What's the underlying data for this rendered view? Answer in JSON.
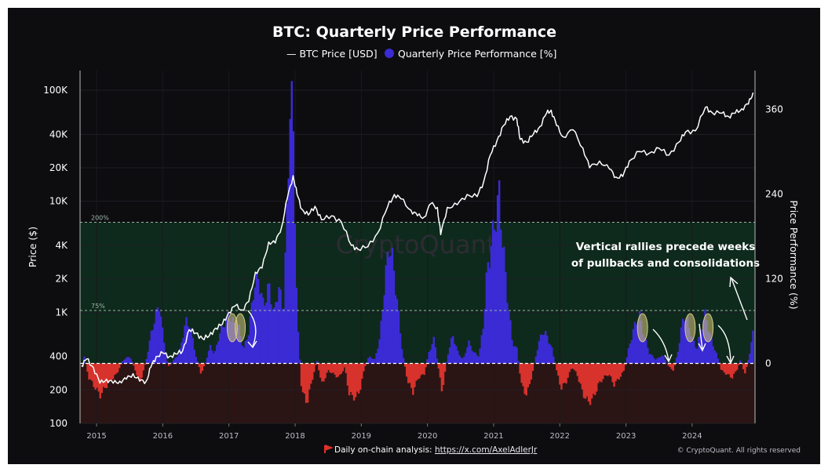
{
  "chart_data": {
    "type": "bar",
    "title": "BTC: Quarterly Price Performance",
    "legend": {
      "placement": "top-center",
      "entries": [
        {
          "label": "— BTC Price [USD]",
          "color": "#ffffff",
          "marker": "line"
        },
        {
          "label": "Quarterly Price Performance [%]",
          "color": "#3b2bd4",
          "marker": "dot"
        }
      ]
    },
    "y_left": {
      "label": "Price ($)",
      "scale": "log",
      "range": [
        100,
        150000
      ],
      "ticks": [
        {
          "value": 100,
          "label": "100"
        },
        {
          "value": 200,
          "label": "200"
        },
        {
          "value": 400,
          "label": "400"
        },
        {
          "value": 1000,
          "label": "1K"
        },
        {
          "value": 2000,
          "label": "2K"
        },
        {
          "value": 4000,
          "label": "4K"
        },
        {
          "value": 10000,
          "label": "10K"
        },
        {
          "value": 20000,
          "label": "20K"
        },
        {
          "value": 40000,
          "label": "40K"
        },
        {
          "value": 100000,
          "label": "100K"
        }
      ]
    },
    "y_right": {
      "label": "Price Performance (%)",
      "range": [
        -85,
        415
      ],
      "ticks": [
        {
          "value": 0,
          "label": "0"
        },
        {
          "value": 120,
          "label": "120"
        },
        {
          "value": 240,
          "label": "240"
        },
        {
          "value": 360,
          "label": "360"
        }
      ]
    },
    "x_axis": {
      "range": [
        2014.75,
        2024.95
      ],
      "ticks": [
        {
          "value": 2015,
          "label": "2015"
        },
        {
          "value": 2016,
          "label": "2016"
        },
        {
          "value": 2017,
          "label": "2017"
        },
        {
          "value": 2018,
          "label": "2018"
        },
        {
          "value": 2019,
          "label": "2019"
        },
        {
          "value": 2020,
          "label": "2020"
        },
        {
          "value": 2021,
          "label": "2021"
        },
        {
          "value": 2022,
          "label": "2022"
        },
        {
          "value": 2023,
          "label": "2023"
        },
        {
          "value": 2024,
          "label": "2024"
        }
      ]
    },
    "bands": [
      {
        "label": "200%",
        "value": 200,
        "style": "dashed"
      },
      {
        "label": "75%",
        "value": 75,
        "style": "dashed"
      }
    ],
    "zones": {
      "positive_color": "#0e2a1c",
      "negative_color": "#2b1414"
    },
    "bar_colors": {
      "positive": "#3b2bd4",
      "negative": "#d8322c"
    },
    "grid": true,
    "series": [
      {
        "name": "BTC Price [USD]",
        "axis": "left",
        "color": "#ffffff",
        "points": [
          [
            2014.77,
            330
          ],
          [
            2014.85,
            380
          ],
          [
            2014.95,
            320
          ],
          [
            2015.05,
            230
          ],
          [
            2015.15,
            250
          ],
          [
            2015.25,
            230
          ],
          [
            2015.35,
            240
          ],
          [
            2015.45,
            250
          ],
          [
            2015.55,
            280
          ],
          [
            2015.65,
            240
          ],
          [
            2015.75,
            240
          ],
          [
            2015.82,
            320
          ],
          [
            2015.9,
            400
          ],
          [
            2016.0,
            430
          ],
          [
            2016.1,
            400
          ],
          [
            2016.2,
            420
          ],
          [
            2016.3,
            450
          ],
          [
            2016.4,
            700
          ],
          [
            2016.5,
            650
          ],
          [
            2016.6,
            580
          ],
          [
            2016.7,
            610
          ],
          [
            2016.8,
            720
          ],
          [
            2016.9,
            780
          ],
          [
            2017.0,
            1000
          ],
          [
            2017.1,
            1150
          ],
          [
            2017.2,
            1050
          ],
          [
            2017.3,
            1250
          ],
          [
            2017.4,
            2300
          ],
          [
            2017.5,
            2500
          ],
          [
            2017.6,
            4300
          ],
          [
            2017.7,
            4200
          ],
          [
            2017.8,
            6000
          ],
          [
            2017.88,
            10500
          ],
          [
            2017.97,
            17000
          ],
          [
            2018.03,
            11500
          ],
          [
            2018.1,
            8500
          ],
          [
            2018.2,
            7500
          ],
          [
            2018.3,
            9000
          ],
          [
            2018.4,
            6800
          ],
          [
            2018.55,
            7400
          ],
          [
            2018.7,
            6500
          ],
          [
            2018.85,
            4000
          ],
          [
            2018.95,
            3700
          ],
          [
            2019.1,
            3900
          ],
          [
            2019.25,
            5200
          ],
          [
            2019.4,
            9000
          ],
          [
            2019.5,
            11500
          ],
          [
            2019.6,
            10500
          ],
          [
            2019.75,
            8300
          ],
          [
            2019.85,
            7400
          ],
          [
            2019.95,
            7200
          ],
          [
            2020.05,
            9500
          ],
          [
            2020.15,
            8800
          ],
          [
            2020.2,
            5000
          ],
          [
            2020.3,
            8800
          ],
          [
            2020.45,
            9300
          ],
          [
            2020.6,
            11500
          ],
          [
            2020.75,
            11000
          ],
          [
            2020.85,
            15000
          ],
          [
            2020.95,
            26000
          ],
          [
            2021.05,
            35000
          ],
          [
            2021.15,
            48000
          ],
          [
            2021.25,
            58000
          ],
          [
            2021.35,
            55000
          ],
          [
            2021.4,
            36000
          ],
          [
            2021.5,
            34000
          ],
          [
            2021.6,
            40000
          ],
          [
            2021.7,
            47000
          ],
          [
            2021.8,
            62000
          ],
          [
            2021.87,
            66000
          ],
          [
            2021.95,
            48000
          ],
          [
            2022.05,
            38000
          ],
          [
            2022.2,
            44000
          ],
          [
            2022.35,
            30000
          ],
          [
            2022.45,
            20000
          ],
          [
            2022.6,
            23000
          ],
          [
            2022.75,
            19500
          ],
          [
            2022.85,
            16500
          ],
          [
            2022.95,
            16700
          ],
          [
            2023.05,
            23000
          ],
          [
            2023.2,
            28000
          ],
          [
            2023.35,
            27000
          ],
          [
            2023.5,
            30000
          ],
          [
            2023.65,
            26000
          ],
          [
            2023.8,
            34000
          ],
          [
            2023.9,
            42000
          ],
          [
            2024.05,
            43000
          ],
          [
            2024.2,
            70000
          ],
          [
            2024.3,
            63000
          ],
          [
            2024.45,
            62000
          ],
          [
            2024.55,
            58000
          ],
          [
            2024.65,
            62000
          ],
          [
            2024.75,
            68000
          ],
          [
            2024.85,
            75000
          ],
          [
            2024.92,
            95000
          ]
        ]
      },
      {
        "name": "Quarterly Price Performance [%]",
        "axis": "right",
        "color": "#3b2bd4",
        "points": [
          [
            2014.8,
            15
          ],
          [
            2014.88,
            -20
          ],
          [
            2014.95,
            -30
          ],
          [
            2015.05,
            -45
          ],
          [
            2015.12,
            -35
          ],
          [
            2015.2,
            -25
          ],
          [
            2015.3,
            -15
          ],
          [
            2015.4,
            5
          ],
          [
            2015.5,
            10
          ],
          [
            2015.58,
            -8
          ],
          [
            2015.65,
            -28
          ],
          [
            2015.75,
            5
          ],
          [
            2015.83,
            45
          ],
          [
            2015.9,
            70
          ],
          [
            2015.95,
            85
          ],
          [
            2016.0,
            40
          ],
          [
            2016.08,
            -5
          ],
          [
            2016.15,
            3
          ],
          [
            2016.25,
            15
          ],
          [
            2016.35,
            60
          ],
          [
            2016.42,
            50
          ],
          [
            2016.5,
            10
          ],
          [
            2016.58,
            -15
          ],
          [
            2016.65,
            3
          ],
          [
            2016.72,
            25
          ],
          [
            2016.78,
            12
          ],
          [
            2016.85,
            40
          ],
          [
            2016.92,
            55
          ],
          [
            2017.0,
            70
          ],
          [
            2017.08,
            55
          ],
          [
            2017.15,
            50
          ],
          [
            2017.22,
            20
          ],
          [
            2017.3,
            45
          ],
          [
            2017.38,
            110
          ],
          [
            2017.45,
            120
          ],
          [
            2017.52,
            80
          ],
          [
            2017.6,
            110
          ],
          [
            2017.68,
            70
          ],
          [
            2017.75,
            110
          ],
          [
            2017.82,
            70
          ],
          [
            2017.88,
            220
          ],
          [
            2017.93,
            395
          ],
          [
            2017.98,
            300
          ],
          [
            2018.03,
            60
          ],
          [
            2018.1,
            -40
          ],
          [
            2018.18,
            -55
          ],
          [
            2018.25,
            -25
          ],
          [
            2018.33,
            5
          ],
          [
            2018.4,
            -30
          ],
          [
            2018.5,
            -10
          ],
          [
            2018.58,
            -15
          ],
          [
            2018.66,
            -20
          ],
          [
            2018.75,
            -5
          ],
          [
            2018.82,
            -45
          ],
          [
            2018.92,
            -48
          ],
          [
            2018.97,
            -40
          ],
          [
            2019.05,
            -5
          ],
          [
            2019.12,
            10
          ],
          [
            2019.2,
            5
          ],
          [
            2019.28,
            35
          ],
          [
            2019.35,
            110
          ],
          [
            2019.42,
            170
          ],
          [
            2019.48,
            140
          ],
          [
            2019.55,
            80
          ],
          [
            2019.62,
            15
          ],
          [
            2019.7,
            -25
          ],
          [
            2019.78,
            -40
          ],
          [
            2019.86,
            -20
          ],
          [
            2019.95,
            -15
          ],
          [
            2020.02,
            15
          ],
          [
            2020.1,
            35
          ],
          [
            2020.17,
            -10
          ],
          [
            2020.22,
            -40
          ],
          [
            2020.3,
            10
          ],
          [
            2020.38,
            40
          ],
          [
            2020.46,
            15
          ],
          [
            2020.54,
            5
          ],
          [
            2020.62,
            30
          ],
          [
            2020.7,
            15
          ],
          [
            2020.78,
            10
          ],
          [
            2020.85,
            60
          ],
          [
            2020.9,
            130
          ],
          [
            2020.95,
            160
          ],
          [
            2021.02,
            200
          ],
          [
            2021.08,
            240
          ],
          [
            2021.12,
            190
          ],
          [
            2021.2,
            100
          ],
          [
            2021.28,
            30
          ],
          [
            2021.35,
            20
          ],
          [
            2021.42,
            -30
          ],
          [
            2021.5,
            -45
          ],
          [
            2021.58,
            -15
          ],
          [
            2021.66,
            20
          ],
          [
            2021.73,
            45
          ],
          [
            2021.8,
            40
          ],
          [
            2021.88,
            20
          ],
          [
            2021.95,
            -10
          ],
          [
            2022.02,
            -35
          ],
          [
            2022.1,
            -25
          ],
          [
            2022.18,
            -5
          ],
          [
            2022.26,
            -15
          ],
          [
            2022.34,
            -40
          ],
          [
            2022.42,
            -55
          ],
          [
            2022.5,
            -50
          ],
          [
            2022.58,
            -30
          ],
          [
            2022.66,
            -20
          ],
          [
            2022.74,
            -15
          ],
          [
            2022.82,
            -30
          ],
          [
            2022.9,
            -20
          ],
          [
            2022.97,
            -10
          ],
          [
            2023.05,
            25
          ],
          [
            2023.12,
            50
          ],
          [
            2023.2,
            70
          ],
          [
            2023.27,
            40
          ],
          [
            2023.35,
            15
          ],
          [
            2023.45,
            5
          ],
          [
            2023.55,
            12
          ],
          [
            2023.65,
            -5
          ],
          [
            2023.72,
            -10
          ],
          [
            2023.8,
            25
          ],
          [
            2023.87,
            70
          ],
          [
            2023.93,
            60
          ],
          [
            2024.0,
            35
          ],
          [
            2024.07,
            20
          ],
          [
            2024.13,
            50
          ],
          [
            2024.2,
            70
          ],
          [
            2024.28,
            35
          ],
          [
            2024.36,
            15
          ],
          [
            2024.44,
            -10
          ],
          [
            2024.52,
            -15
          ],
          [
            2024.6,
            -20
          ],
          [
            2024.67,
            -10
          ],
          [
            2024.73,
            5
          ],
          [
            2024.8,
            -15
          ],
          [
            2024.88,
            20
          ],
          [
            2024.93,
            50
          ]
        ]
      }
    ],
    "annotations": {
      "note_line1": "Vertical rallies precede weeks",
      "note_line2": "of pullbacks and consolidations",
      "watermark": "CryptoQuant",
      "highlight_x": [
        2017.05,
        2017.17,
        2023.25,
        2023.97,
        2024.24
      ]
    }
  },
  "footer": {
    "source_prefix": "Daily on-chain analysis: ",
    "source_link": "https://x.com/AxelAdlerJr",
    "copyright": "© CryptoQuant. All rights reserved"
  }
}
